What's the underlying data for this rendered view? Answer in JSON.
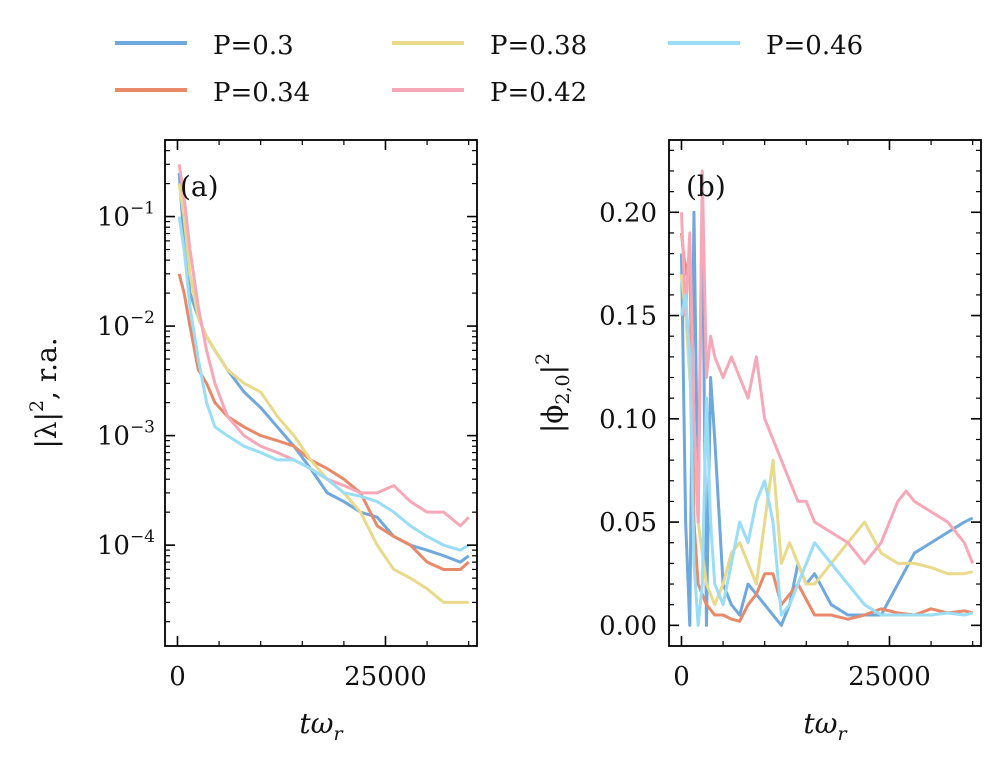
{
  "legend": {
    "placement": "top-center",
    "columns": 3,
    "entries": [
      {
        "label": "P=0.3",
        "color": "#6fa8dc"
      },
      {
        "label": "P=0.34",
        "color": "#e8896a"
      },
      {
        "label": "P=0.38",
        "color": "#e9d98a"
      },
      {
        "label": "P=0.42",
        "color": "#f7a8b8"
      },
      {
        "label": "P=0.46",
        "color": "#99ddf7"
      }
    ]
  },
  "chart_data": [
    {
      "type": "line",
      "panel_label": "(a)",
      "xlabel_base": "t",
      "xlabel_greek": "ω",
      "xlabel_sub": "r",
      "ylabel_main": "|λ|",
      "ylabel_sup": "2",
      "ylabel_tail": ", r.a.",
      "yscale": "log",
      "xlim": [
        -1500,
        36000
      ],
      "ylim": [
        1.2e-05,
        0.5
      ],
      "xticks": [
        {
          "value": 0,
          "label": "0"
        },
        {
          "value": 25000,
          "label": "25000"
        }
      ],
      "yticks": [
        {
          "value": 0.1,
          "base": "10",
          "exp": "−1"
        },
        {
          "value": 0.01,
          "base": "10",
          "exp": "−2"
        },
        {
          "value": 0.001,
          "base": "10",
          "exp": "−3"
        },
        {
          "value": 0.0001,
          "base": "10",
          "exp": "−4"
        }
      ],
      "series": [
        {
          "name": "P=0.3",
          "color": "#6fa8dc",
          "x": [
            200,
            800,
            1500,
            2500,
            3500,
            4500,
            6000,
            8000,
            10000,
            12000,
            14000,
            16000,
            18000,
            20000,
            22000,
            24000,
            26000,
            28000,
            30000,
            32000,
            34000,
            35000
          ],
          "y": [
            0.25,
            0.06,
            0.02,
            0.012,
            0.008,
            0.006,
            0.004,
            0.0025,
            0.0018,
            0.0012,
            0.0008,
            0.0005,
            0.0003,
            0.00025,
            0.0002,
            0.00018,
            0.00012,
            0.0001,
            9e-05,
            8e-05,
            7e-05,
            8e-05
          ]
        },
        {
          "name": "P=0.34",
          "color": "#e8896a",
          "x": [
            200,
            800,
            1500,
            2500,
            3500,
            4500,
            6000,
            8000,
            10000,
            12000,
            14000,
            16000,
            18000,
            20000,
            22000,
            24000,
            26000,
            28000,
            30000,
            32000,
            34000,
            35000
          ],
          "y": [
            0.03,
            0.02,
            0.01,
            0.004,
            0.003,
            0.002,
            0.0015,
            0.0012,
            0.001,
            0.0009,
            0.0008,
            0.0006,
            0.0005,
            0.0004,
            0.0003,
            0.00015,
            0.00012,
            0.0001,
            7e-05,
            6e-05,
            6e-05,
            7e-05
          ]
        },
        {
          "name": "P=0.38",
          "color": "#e9d98a",
          "x": [
            200,
            800,
            1500,
            2500,
            3500,
            4500,
            6000,
            8000,
            10000,
            12000,
            14000,
            16000,
            18000,
            20000,
            22000,
            24000,
            26000,
            28000,
            30000,
            32000,
            34000,
            35000
          ],
          "y": [
            0.2,
            0.1,
            0.03,
            0.012,
            0.008,
            0.006,
            0.004,
            0.003,
            0.0025,
            0.0015,
            0.001,
            0.0006,
            0.0004,
            0.0003,
            0.0002,
            0.0001,
            6e-05,
            5e-05,
            4e-05,
            3e-05,
            3e-05,
            3e-05
          ]
        },
        {
          "name": "P=0.42",
          "color": "#f7a8b8",
          "x": [
            200,
            800,
            1500,
            2500,
            3500,
            4500,
            6000,
            8000,
            10000,
            12000,
            14000,
            16000,
            18000,
            20000,
            22000,
            24000,
            26000,
            28000,
            30000,
            32000,
            34000,
            35000
          ],
          "y": [
            0.3,
            0.15,
            0.05,
            0.015,
            0.006,
            0.003,
            0.0015,
            0.001,
            0.0008,
            0.0007,
            0.0006,
            0.0005,
            0.0004,
            0.00035,
            0.0003,
            0.0003,
            0.00035,
            0.00025,
            0.0002,
            0.0002,
            0.00015,
            0.00018
          ]
        },
        {
          "name": "P=0.46",
          "color": "#99ddf7",
          "x": [
            200,
            800,
            1500,
            2500,
            3500,
            4500,
            6000,
            8000,
            10000,
            12000,
            14000,
            16000,
            18000,
            20000,
            22000,
            24000,
            26000,
            28000,
            30000,
            32000,
            34000,
            35000
          ],
          "y": [
            0.1,
            0.05,
            0.015,
            0.005,
            0.002,
            0.0012,
            0.001,
            0.0008,
            0.0007,
            0.0006,
            0.0006,
            0.0005,
            0.0004,
            0.0003,
            0.00028,
            0.00025,
            0.0002,
            0.00015,
            0.00012,
            0.0001,
            9e-05,
            0.0001
          ]
        }
      ]
    },
    {
      "type": "line",
      "panel_label": "(b)",
      "xlabel_base": "t",
      "xlabel_greek": "ω",
      "xlabel_sub": "r",
      "ylabel_main": "|ϕ",
      "ylabel_sub": "2,0",
      "ylabel_close": "|",
      "ylabel_sup": "2",
      "yscale": "linear",
      "xlim": [
        -1500,
        36000
      ],
      "ylim": [
        -0.01,
        0.235
      ],
      "xticks": [
        {
          "value": 0,
          "label": "0"
        },
        {
          "value": 25000,
          "label": "25000"
        }
      ],
      "yticks": [
        {
          "value": 0.0,
          "label": "0.00"
        },
        {
          "value": 0.05,
          "label": "0.05"
        },
        {
          "value": 0.1,
          "label": "0.10"
        },
        {
          "value": 0.15,
          "label": "0.15"
        },
        {
          "value": 0.2,
          "label": "0.20"
        }
      ],
      "series": [
        {
          "name": "P=0.3",
          "color": "#6fa8dc",
          "x": [
            0,
            500,
            1000,
            1500,
            2000,
            2500,
            3000,
            3500,
            4000,
            5000,
            6000,
            7000,
            8000,
            9000,
            10000,
            11000,
            12000,
            13000,
            14000,
            15000,
            16000,
            18000,
            20000,
            22000,
            24000,
            26000,
            28000,
            30000,
            32000,
            34000,
            35000
          ],
          "y": [
            0.18,
            0.05,
            0.0,
            0.2,
            0.05,
            0.21,
            0.0,
            0.12,
            0.09,
            0.02,
            0.01,
            0.005,
            0.02,
            0.015,
            0.01,
            0.005,
            0.0,
            0.01,
            0.03,
            0.02,
            0.025,
            0.01,
            0.005,
            0.005,
            0.005,
            0.02,
            0.035,
            0.04,
            0.045,
            0.05,
            0.052
          ]
        },
        {
          "name": "P=0.34",
          "color": "#e8896a",
          "x": [
            0,
            500,
            1000,
            1500,
            2000,
            3000,
            4000,
            5000,
            6000,
            7000,
            8000,
            9000,
            10000,
            11000,
            12000,
            13000,
            14000,
            16000,
            18000,
            20000,
            22000,
            24000,
            26000,
            28000,
            30000,
            32000,
            34000,
            35000
          ],
          "y": [
            0.19,
            0.17,
            0.18,
            0.05,
            0.02,
            0.01,
            0.005,
            0.005,
            0.003,
            0.002,
            0.01,
            0.015,
            0.025,
            0.025,
            0.01,
            0.015,
            0.02,
            0.005,
            0.005,
            0.003,
            0.005,
            0.008,
            0.006,
            0.005,
            0.008,
            0.006,
            0.007,
            0.006
          ]
        },
        {
          "name": "P=0.38",
          "color": "#e9d98a",
          "x": [
            0,
            500,
            1000,
            1500,
            2000,
            3000,
            4000,
            5000,
            6000,
            7000,
            8000,
            9000,
            10000,
            11000,
            12000,
            13000,
            14000,
            15000,
            16000,
            18000,
            20000,
            22000,
            24000,
            26000,
            28000,
            30000,
            32000,
            34000,
            35000
          ],
          "y": [
            0.17,
            0.15,
            0.12,
            0.1,
            0.05,
            0.02,
            0.01,
            0.02,
            0.035,
            0.04,
            0.03,
            0.02,
            0.05,
            0.08,
            0.03,
            0.04,
            0.03,
            0.02,
            0.02,
            0.03,
            0.04,
            0.05,
            0.035,
            0.03,
            0.03,
            0.028,
            0.025,
            0.025,
            0.026
          ]
        },
        {
          "name": "P=0.42",
          "color": "#f7a8b8",
          "x": [
            0,
            500,
            1000,
            1500,
            2000,
            2500,
            3000,
            3500,
            4000,
            5000,
            6000,
            7000,
            8000,
            9000,
            10000,
            11000,
            12000,
            13000,
            14000,
            15000,
            16000,
            18000,
            20000,
            22000,
            24000,
            26000,
            27000,
            28000,
            30000,
            32000,
            34000,
            35000
          ],
          "y": [
            0.2,
            0.15,
            0.19,
            0.1,
            0.05,
            0.22,
            0.12,
            0.14,
            0.13,
            0.12,
            0.13,
            0.12,
            0.11,
            0.13,
            0.1,
            0.09,
            0.08,
            0.07,
            0.06,
            0.06,
            0.05,
            0.045,
            0.04,
            0.03,
            0.04,
            0.06,
            0.065,
            0.06,
            0.055,
            0.05,
            0.04,
            0.03
          ]
        },
        {
          "name": "P=0.46",
          "color": "#99ddf7",
          "x": [
            0,
            500,
            1000,
            1500,
            2000,
            2500,
            3000,
            3500,
            4000,
            5000,
            6000,
            7000,
            8000,
            9000,
            10000,
            11000,
            12000,
            13000,
            14000,
            15000,
            16000,
            18000,
            20000,
            22000,
            24000,
            26000,
            28000,
            30000,
            32000,
            34000,
            35000
          ],
          "y": [
            0.15,
            0.16,
            0.13,
            0.03,
            0.0,
            0.02,
            0.11,
            0.05,
            0.02,
            0.01,
            0.03,
            0.05,
            0.04,
            0.06,
            0.07,
            0.05,
            0.005,
            0.01,
            0.02,
            0.03,
            0.04,
            0.03,
            0.02,
            0.01,
            0.005,
            0.005,
            0.005,
            0.005,
            0.006,
            0.005,
            0.006
          ]
        }
      ]
    }
  ]
}
